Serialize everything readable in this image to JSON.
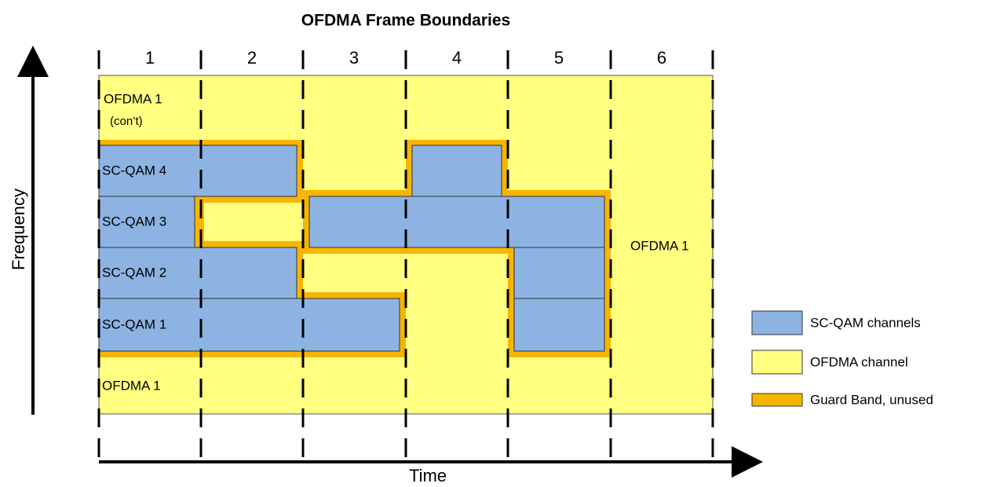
{
  "title": "OFDMA Frame Boundaries",
  "columns": [
    "1",
    "2",
    "3",
    "4",
    "5",
    "6"
  ],
  "axes": {
    "y": "Frequency",
    "x": "Time"
  },
  "regions": {
    "ofdma_top": "OFDMA 1",
    "ofdma_top_note": "(con’t)",
    "sc_qam_4": "SC-QAM 4",
    "sc_qam_3": "SC-QAM 3",
    "sc_qam_2": "SC-QAM 2",
    "sc_qam_1": "SC-QAM 1",
    "ofdma_bottom": "OFDMA 1",
    "ofdma_right": "OFDMA 1"
  },
  "legend": [
    "SC-QAM channels",
    "OFDMA channel",
    "Guard Band, unused"
  ]
}
